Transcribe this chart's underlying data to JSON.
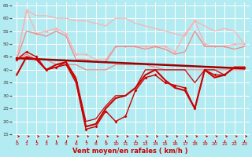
{
  "xlabel": "Vent moyen/en rafales ( km/h )",
  "background_color": "#b2ebf2",
  "grid_color": "#c0d8d8",
  "xlim": [
    -0.5,
    23.5
  ],
  "ylim": [
    13,
    66
  ],
  "yticks": [
    15,
    20,
    25,
    30,
    35,
    40,
    45,
    50,
    55,
    60,
    65
  ],
  "xticks": [
    0,
    1,
    2,
    3,
    4,
    5,
    6,
    7,
    8,
    9,
    10,
    11,
    12,
    13,
    14,
    15,
    16,
    17,
    18,
    19,
    20,
    21,
    22,
    23
  ],
  "series": [
    {
      "x": [
        0,
        1,
        2,
        3,
        4,
        5,
        6,
        7,
        8,
        9,
        10,
        11,
        12,
        13,
        14,
        15,
        16,
        17,
        18,
        19,
        20,
        21,
        22,
        23
      ],
      "y": [
        44,
        63,
        61,
        61,
        60,
        60,
        59,
        59,
        58,
        57,
        60,
        60,
        58,
        57,
        56,
        55,
        54,
        53,
        59,
        57,
        55,
        56,
        55,
        50
      ],
      "color": "#ffb0b0",
      "lw": 0.9,
      "marker": null,
      "ms": 0
    },
    {
      "x": [
        0,
        1,
        2,
        3,
        4,
        5,
        6,
        7,
        8,
        9,
        10,
        11,
        12,
        13,
        14,
        15,
        16,
        17,
        18,
        19,
        20,
        21,
        22,
        23
      ],
      "y": [
        44,
        63,
        54,
        55,
        56,
        54,
        46,
        46,
        44,
        44,
        49,
        49,
        49,
        49,
        49,
        49,
        47,
        54,
        59,
        50,
        49,
        49,
        50,
        50
      ],
      "color": "#ffb0b0",
      "lw": 0.9,
      "marker": "D",
      "ms": 2.0
    },
    {
      "x": [
        0,
        1,
        2,
        3,
        4,
        5,
        6,
        7,
        8,
        9,
        10,
        11,
        12,
        13,
        14,
        15,
        16,
        17,
        18,
        19,
        20,
        21,
        22,
        23
      ],
      "y": [
        44,
        55,
        54,
        53,
        55,
        53,
        44,
        44,
        43,
        43,
        49,
        49,
        49,
        48,
        49,
        48,
        46,
        47,
        55,
        49,
        49,
        49,
        48,
        49
      ],
      "color": "#ee8888",
      "lw": 0.9,
      "marker": null,
      "ms": 0
    },
    {
      "x": [
        0,
        1,
        2,
        3,
        4,
        5,
        6,
        7,
        8,
        9,
        10,
        11,
        12,
        13,
        14,
        15,
        16,
        17,
        18,
        19,
        20,
        21,
        22,
        23
      ],
      "y": [
        44,
        46,
        44,
        44,
        42,
        42,
        42,
        40,
        40,
        40,
        42,
        42,
        42,
        42,
        41,
        40,
        40,
        40,
        40,
        40,
        40,
        40,
        40,
        40
      ],
      "color": "#ee8888",
      "lw": 0.9,
      "marker": null,
      "ms": 0
    },
    {
      "x": [
        0,
        23
      ],
      "y": [
        44.5,
        40.5
      ],
      "color": "#990000",
      "lw": 1.8,
      "marker": null,
      "ms": 0
    },
    {
      "x": [
        0,
        1,
        2,
        3,
        4,
        5,
        6,
        7,
        8,
        9,
        10,
        11,
        12,
        13,
        14,
        15,
        16,
        17,
        18,
        19,
        20,
        21,
        22,
        23
      ],
      "y": [
        44,
        47,
        45,
        40,
        41,
        42,
        35,
        17,
        18,
        24,
        20,
        22,
        32,
        37,
        38,
        35,
        34,
        33,
        25,
        40,
        38,
        38,
        41,
        41
      ],
      "color": "#cc0000",
      "lw": 1.0,
      "marker": "D",
      "ms": 2.0
    },
    {
      "x": [
        0,
        1,
        2,
        3,
        4,
        5,
        6,
        7,
        8,
        9,
        10,
        11,
        12,
        13,
        14,
        15,
        16,
        17,
        18,
        19,
        20,
        21,
        22,
        23
      ],
      "y": [
        38,
        45,
        44,
        40,
        42,
        43,
        36,
        18,
        19,
        25,
        29,
        30,
        33,
        38,
        40,
        36,
        33,
        32,
        25,
        40,
        37,
        38,
        41,
        41
      ],
      "color": "#cc0000",
      "lw": 1.5,
      "marker": null,
      "ms": 0
    },
    {
      "x": [
        0,
        1,
        2,
        3,
        4,
        5,
        6,
        7,
        8,
        9,
        10,
        11,
        12,
        13,
        14,
        15,
        16,
        17,
        18,
        19,
        20,
        21,
        22,
        23
      ],
      "y": [
        44,
        45,
        44,
        40,
        41,
        43,
        37,
        20,
        21,
        26,
        30,
        30,
        33,
        40,
        40,
        40,
        40,
        40,
        35,
        40,
        40,
        38,
        41,
        41
      ],
      "color": "#cc0000",
      "lw": 0.9,
      "marker": null,
      "ms": 0
    }
  ]
}
